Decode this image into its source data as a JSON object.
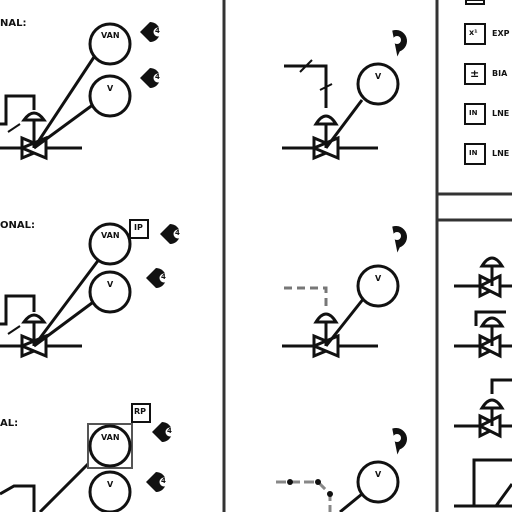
{
  "sections": [
    {
      "label": "NAL:"
    },
    {
      "label": "ONAL:"
    },
    {
      "label": "AL:"
    }
  ],
  "tags": {
    "valve": "VAN",
    "vent": "V",
    "box_ip": "IP",
    "box_rp": "RP"
  },
  "callouts": {
    "number": "4"
  },
  "legend": {
    "items": [
      {
        "icon_text": "x¹",
        "label": "EXP"
      },
      {
        "icon_text": "±",
        "label": "BIA"
      },
      {
        "icon_text": "IN",
        "label": "LNE"
      },
      {
        "icon_text": "IN",
        "label": "LNE"
      }
    ]
  },
  "colors": {
    "line": "#111111",
    "dashed": "#888888",
    "background": "#ffffff"
  }
}
